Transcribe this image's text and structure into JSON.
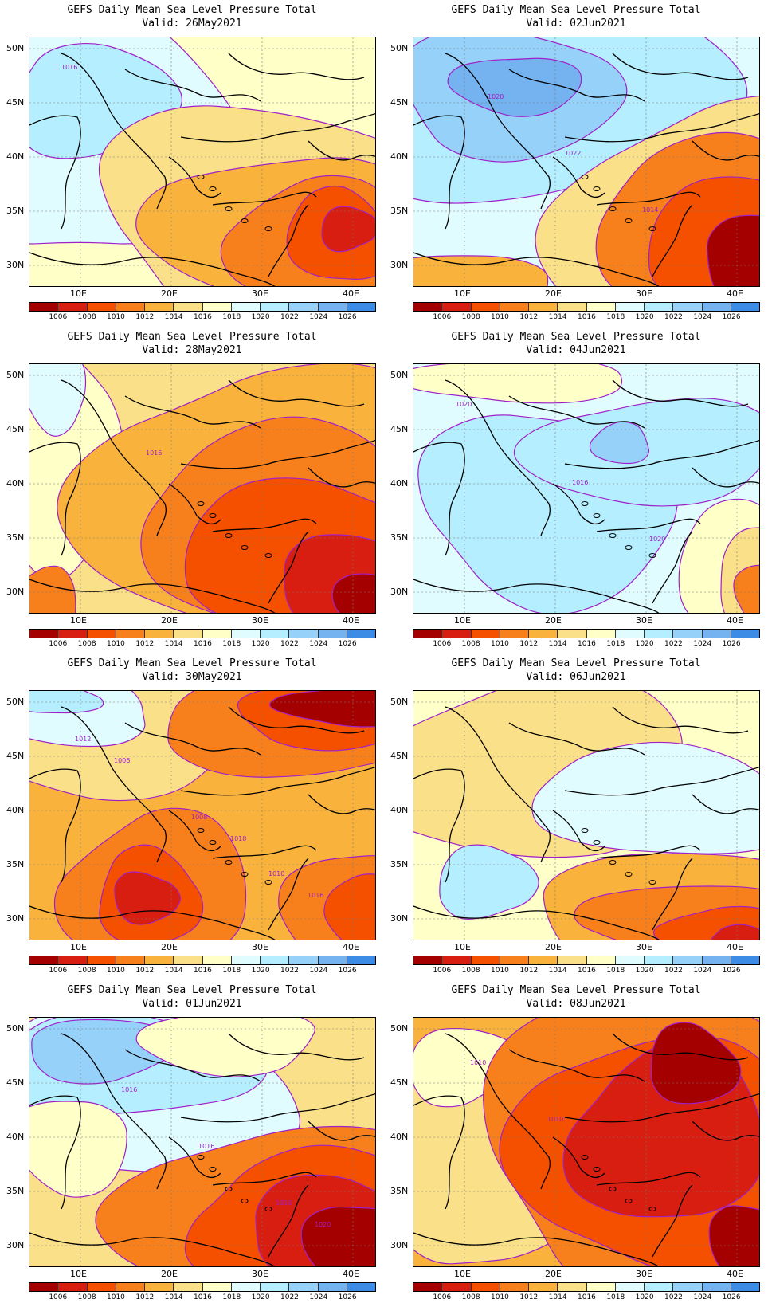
{
  "colorbar": {
    "labels": [
      "1006",
      "1008",
      "1010",
      "1012",
      "1014",
      "1016",
      "1018",
      "1020",
      "1022",
      "1024",
      "1026"
    ],
    "colors": [
      "#a50000",
      "#d81e10",
      "#f45000",
      "#f7801d",
      "#f9b33d",
      "#fbe08a",
      "#ffffc8",
      "#e0fcff",
      "#b5efff",
      "#96d1fa",
      "#74b3f0",
      "#3c8be5"
    ]
  },
  "axes": {
    "lat_labels": [
      "50N",
      "45N",
      "40N",
      "35N",
      "30N"
    ],
    "lon_labels": [
      "10E",
      "20E",
      "30E",
      "40E"
    ]
  },
  "panels": [
    {
      "title": "GEFS Daily Mean Sea Level Pressure Total",
      "valid": "Valid: 26May2021",
      "regime": "high-northwest",
      "contour_labels": [
        "1016"
      ]
    },
    {
      "title": "GEFS Daily Mean Sea Level Pressure Total",
      "valid": "Valid: 02Jun2021",
      "regime": "high-north-strong",
      "contour_labels": [
        "1020",
        "1022",
        "1014"
      ]
    },
    {
      "title": "GEFS Daily Mean Sea Level Pressure Total",
      "valid": "Valid: 28May2021",
      "regime": "low-east",
      "contour_labels": [
        "1016"
      ]
    },
    {
      "title": "GEFS Daily Mean Sea Level Pressure Total",
      "valid": "Valid: 04Jun2021",
      "regime": "high-broad",
      "contour_labels": [
        "1016",
        "1020",
        "1020"
      ]
    },
    {
      "title": "GEFS Daily Mean Sea Level Pressure Total",
      "valid": "Valid: 30May2021",
      "regime": "low-northeast",
      "contour_labels": [
        "1018",
        "1016",
        "1006",
        "1008",
        "1010",
        "1012"
      ]
    },
    {
      "title": "GEFS Daily Mean Sea Level Pressure Total",
      "valid": "Valid: 06Jun2021",
      "regime": "mixed",
      "contour_labels": []
    },
    {
      "title": "GEFS Daily Mean Sea Level Pressure Total",
      "valid": "Valid: 01Jun2021",
      "regime": "high-northwest-low-southeast",
      "contour_labels": [
        "1020",
        "1016",
        "1016",
        "1010"
      ]
    },
    {
      "title": "GEFS Daily Mean Sea Level Pressure Total",
      "valid": "Valid: 08Jun2021",
      "regime": "low-east-broad",
      "contour_labels": [
        "1010",
        "1010"
      ]
    }
  ]
}
